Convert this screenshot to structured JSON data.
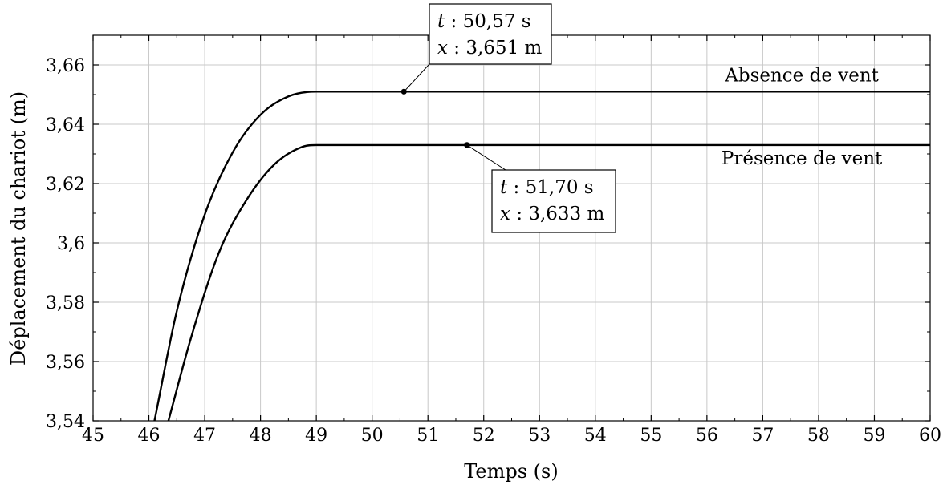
{
  "chart_data": {
    "type": "line",
    "title": "",
    "xlabel": "Temps (s)",
    "ylabel": "Déplacement du chariot (m)",
    "xlim": [
      45,
      60
    ],
    "ylim": [
      3.54,
      3.67
    ],
    "grid": true,
    "x_ticks": [
      45,
      46,
      47,
      48,
      49,
      50,
      51,
      52,
      53,
      54,
      55,
      56,
      57,
      58,
      59,
      60
    ],
    "x_tick_labels": [
      "45",
      "46",
      "47",
      "48",
      "49",
      "50",
      "51",
      "52",
      "53",
      "54",
      "55",
      "56",
      "57",
      "58",
      "59",
      "60"
    ],
    "y_ticks": [
      3.54,
      3.56,
      3.58,
      3.6,
      3.62,
      3.64,
      3.66
    ],
    "y_tick_labels": [
      "3,54",
      "3,56",
      "3,58",
      "3,6",
      "3,62",
      "3,64",
      "3,66"
    ],
    "series": [
      {
        "name": "Absence de vent",
        "x": [
          46.1,
          46.5,
          47,
          47.5,
          48,
          48.5,
          49,
          50,
          51,
          52,
          53,
          54,
          55,
          56,
          57,
          58,
          59,
          60
        ],
        "y": [
          3.54,
          3.577,
          3.6095,
          3.6305,
          3.6432,
          3.6494,
          3.651,
          3.651,
          3.651,
          3.651,
          3.651,
          3.651,
          3.651,
          3.651,
          3.651,
          3.651,
          3.651,
          3.651
        ]
      },
      {
        "name": "Présence de vent",
        "x": [
          46.35,
          46.75,
          47.25,
          47.75,
          48.25,
          48.75,
          49,
          50,
          51,
          52,
          53,
          54,
          55,
          56,
          57,
          58,
          59,
          60
        ],
        "y": [
          3.54,
          3.5677,
          3.5965,
          3.6145,
          3.6265,
          3.6324,
          3.633,
          3.633,
          3.633,
          3.633,
          3.633,
          3.633,
          3.633,
          3.633,
          3.633,
          3.633,
          3.633,
          3.633
        ]
      }
    ],
    "series_labels": [
      {
        "text": "Absence de vent",
        "x": 57.7,
        "y": 3.6545
      },
      {
        "text": "Présence de vent",
        "x": 57.7,
        "y": 3.6265
      }
    ],
    "annotations": [
      {
        "point": {
          "x": 50.57,
          "y": 3.651
        },
        "line1_var": "t",
        "line1_value": " : 50,57 s",
        "line2_var": "x",
        "line2_value": " : 3,651 m"
      },
      {
        "point": {
          "x": 51.7,
          "y": 3.633
        },
        "line1_var": "t",
        "line1_value": " : 51,70 s",
        "line2_var": "x",
        "line2_value": " : 3,633 m"
      }
    ]
  }
}
